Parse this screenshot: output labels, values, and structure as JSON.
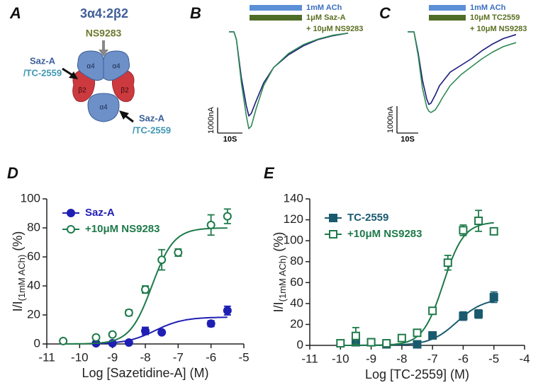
{
  "diagram": {
    "panel": "A",
    "title": "3α4:2β2",
    "agonist_site_label": "NS9283",
    "binding_labels": [
      [
        "Saz-A",
        "/TC-2559"
      ],
      [
        "Saz-A",
        "/TC-2559"
      ]
    ],
    "subunits": [
      "α4",
      "α4",
      "β2",
      "β2",
      "α4"
    ]
  },
  "chart_data": [
    {
      "type": "trace",
      "panel": "B",
      "legend": [
        {
          "label": "1mM ACh",
          "color": "#5b8fd6"
        },
        {
          "label": "1μM Saz-A",
          "color": "#4f6d26"
        },
        {
          "label": "+ 10μM NS9283"
        }
      ],
      "x": [
        0,
        2,
        3,
        5,
        7,
        8,
        9,
        11,
        14,
        18,
        24,
        30,
        36,
        42,
        48
      ],
      "series": [
        {
          "color": "#1c1c7a",
          "values": [
            0,
            0,
            -300,
            -1800,
            -2900,
            -3300,
            -3200,
            -2700,
            -2000,
            -1400,
            -900,
            -550,
            -300,
            -150,
            -50
          ]
        },
        {
          "color": "#2f8a55",
          "values": [
            0,
            0,
            -300,
            -2000,
            -3300,
            -3800,
            -3700,
            -3000,
            -2100,
            -1400,
            -850,
            -500,
            -280,
            -130,
            -50
          ]
        }
      ],
      "scale_bar": {
        "y": {
          "value": 1000,
          "label": "1000nA"
        },
        "x": {
          "value": 10,
          "label": "10S"
        }
      }
    },
    {
      "type": "trace",
      "panel": "C",
      "legend": [
        {
          "label": "1mM ACh",
          "color": "#5b8fd6"
        },
        {
          "label": "10μM TC2559",
          "color": "#4f6d26"
        },
        {
          "label": "+ 10μM NS9283"
        }
      ],
      "x": [
        0,
        3,
        5,
        7,
        9,
        10,
        11,
        12,
        13,
        15,
        16,
        20,
        25,
        30,
        35,
        40,
        45,
        51
      ],
      "series": [
        {
          "color": "#1c1c7a",
          "values": [
            0,
            0,
            -800,
            -1800,
            -2500,
            -2700,
            -2650,
            -2500,
            -2350,
            -2000,
            -1900,
            -1500,
            -1250,
            -1000,
            -700,
            -450,
            -250,
            -100
          ]
        },
        {
          "color": "#2f8a55",
          "values": [
            0,
            0,
            -900,
            -2100,
            -2800,
            -2950,
            -3000,
            -2950,
            -2900,
            -2650,
            -2500,
            -2000,
            -1600,
            -1300,
            -1000,
            -750,
            -550,
            -400
          ]
        }
      ],
      "scale_bar": {
        "y": {
          "value": 1000,
          "label": "1000nA"
        },
        "x": {
          "value": 10,
          "label": "10S"
        }
      }
    },
    {
      "type": "dose-response",
      "panel": "D",
      "x_label": "Log [Sazetidine-A] (M)",
      "y_label": {
        "main": "I/I",
        "sub": "(1mM ACh)",
        "unit": "(%)"
      },
      "xlim": [
        -11,
        -5
      ],
      "xticks": [
        -11,
        -10,
        -9,
        -8,
        -7,
        -6,
        -5
      ],
      "ylim": [
        0,
        100
      ],
      "yticks": [
        0,
        20,
        40,
        60,
        80,
        100
      ],
      "series": [
        {
          "name": "Saz-A",
          "color": "#1f1fb4",
          "marker": "circle",
          "filled": true,
          "x": [
            -9.5,
            -9,
            -8.5,
            -8,
            -7.5,
            -6,
            -5.5
          ],
          "values": [
            0.5,
            0.5,
            1,
            9,
            8,
            14,
            23
          ],
          "errors": [
            null,
            null,
            null,
            2.5,
            null,
            2,
            3
          ],
          "fit": {
            "bottom": 0,
            "top": 18.5,
            "logec50": -7.7,
            "hill": 1
          }
        },
        {
          "name": "+10μM NS9283",
          "color": "#1e7a4a",
          "marker": "circle",
          "filled": false,
          "x": [
            -10.5,
            -9.5,
            -9,
            -8.5,
            -8,
            -7.5,
            -7,
            -6,
            -5.5
          ],
          "values": [
            2,
            4.5,
            6.5,
            21.5,
            37.5,
            58,
            63,
            82,
            88
          ],
          "errors": [
            null,
            null,
            null,
            2,
            2.5,
            7,
            2.5,
            7,
            5
          ],
          "fit": {
            "bottom": 0,
            "top": 80,
            "logec50": -7.8,
            "hill": 1.3
          }
        }
      ]
    },
    {
      "type": "dose-response",
      "panel": "E",
      "x_label": "Log [TC-2559] (M)",
      "y_label": {
        "main": "I/I",
        "sub": "(1mM ACh)",
        "unit": "(%)"
      },
      "xlim": [
        -11,
        -4
      ],
      "xticks": [
        -11,
        -10,
        -9,
        -8,
        -7,
        -6,
        -5,
        -4
      ],
      "ylim": [
        0,
        140
      ],
      "yticks": [
        0,
        20,
        40,
        60,
        80,
        100,
        120,
        140
      ],
      "series": [
        {
          "name": "TC-2559",
          "color": "#1a5a6e",
          "marker": "square",
          "filled": true,
          "x": [
            -9.5,
            -9,
            -8.5,
            -7.5,
            -7,
            -6,
            -5.5,
            -5
          ],
          "values": [
            3,
            3,
            1,
            1,
            9.5,
            28,
            30,
            46
          ],
          "errors": [
            null,
            null,
            null,
            null,
            null,
            4,
            4,
            5
          ],
          "fit": {
            "bottom": 0,
            "top": 45,
            "logec50": -6.2,
            "hill": 1
          }
        },
        {
          "name": "+10μM NS9283",
          "color": "#1e7a4a",
          "marker": "square",
          "filled": false,
          "x": [
            -10,
            -9.5,
            -9,
            -8.5,
            -8,
            -7.5,
            -7,
            -6.5,
            -6,
            -5.5,
            -5
          ],
          "values": [
            2,
            9,
            3,
            2,
            7,
            12,
            33,
            79,
            110,
            119,
            109
          ],
          "errors": [
            null,
            8,
            null,
            null,
            null,
            null,
            null,
            7,
            5,
            10,
            3
          ],
          "fit": {
            "bottom": 0,
            "top": 118,
            "logec50": -6.65,
            "hill": 1.3
          }
        }
      ]
    }
  ]
}
